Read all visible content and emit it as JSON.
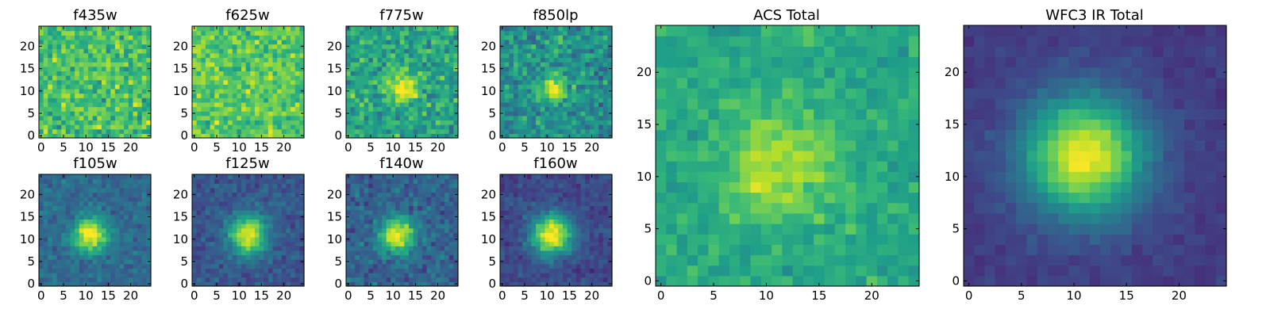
{
  "figure": {
    "colormap": "viridis",
    "colormap_stops": [
      "#440154",
      "#482878",
      "#3e4989",
      "#31688e",
      "#26828e",
      "#1f9e89",
      "#35b779",
      "#6ece58",
      "#b5de2b",
      "#fde725"
    ]
  },
  "chart_data": [
    {
      "type": "heatmap",
      "title": "f435w",
      "grid_size": 25,
      "xlim": [
        -0.5,
        24.5
      ],
      "ylim": [
        -0.5,
        24.5
      ],
      "xticks": [
        0,
        5,
        10,
        15,
        20
      ],
      "yticks": [
        0,
        5,
        10,
        15,
        20
      ],
      "source_center": [
        12,
        11
      ],
      "source_peak": 0.0,
      "source_sigma": 2.5,
      "background": 0.7,
      "noise": 0.3
    },
    {
      "type": "heatmap",
      "title": "f625w",
      "grid_size": 25,
      "xlim": [
        -0.5,
        24.5
      ],
      "ylim": [
        -0.5,
        24.5
      ],
      "xticks": [
        0,
        5,
        10,
        15,
        20
      ],
      "yticks": [
        0,
        5,
        10,
        15,
        20
      ],
      "source_center": [
        12,
        11
      ],
      "source_peak": 0.0,
      "source_sigma": 2.5,
      "background": 0.74,
      "noise": 0.26
    },
    {
      "type": "heatmap",
      "title": "f775w",
      "grid_size": 25,
      "xlim": [
        -0.5,
        24.5
      ],
      "ylim": [
        -0.5,
        24.5
      ],
      "xticks": [
        0,
        5,
        10,
        15,
        20
      ],
      "yticks": [
        0,
        5,
        10,
        15,
        20
      ],
      "source_center": [
        12,
        11
      ],
      "source_peak": 0.35,
      "source_sigma": 2.6,
      "background": 0.58,
      "noise": 0.3
    },
    {
      "type": "heatmap",
      "title": "f850lp",
      "grid_size": 25,
      "xlim": [
        -0.5,
        24.5
      ],
      "ylim": [
        -0.5,
        24.5
      ],
      "xticks": [
        0,
        5,
        10,
        15,
        20
      ],
      "yticks": [
        0,
        5,
        10,
        15,
        20
      ],
      "source_center": [
        11,
        11
      ],
      "source_peak": 0.45,
      "source_sigma": 2.2,
      "background": 0.5,
      "noise": 0.3
    },
    {
      "type": "heatmap",
      "title": "f105w",
      "grid_size": 25,
      "xlim": [
        -0.5,
        24.5
      ],
      "ylim": [
        -0.5,
        24.5
      ],
      "xticks": [
        0,
        5,
        10,
        15,
        20
      ],
      "yticks": [
        0,
        5,
        10,
        15,
        20
      ],
      "source_center": [
        11,
        11
      ],
      "source_peak": 0.7,
      "source_sigma": 2.6,
      "background": 0.35,
      "noise": 0.16
    },
    {
      "type": "heatmap",
      "title": "f125w",
      "grid_size": 25,
      "xlim": [
        -0.5,
        24.5
      ],
      "ylim": [
        -0.5,
        24.5
      ],
      "xticks": [
        0,
        5,
        10,
        15,
        20
      ],
      "yticks": [
        0,
        5,
        10,
        15,
        20
      ],
      "source_center": [
        12,
        11
      ],
      "source_peak": 0.7,
      "source_sigma": 3.0,
      "background": 0.27,
      "noise": 0.15
    },
    {
      "type": "heatmap",
      "title": "f140w",
      "grid_size": 25,
      "xlim": [
        -0.5,
        24.5
      ],
      "ylim": [
        -0.5,
        24.5
      ],
      "xticks": [
        0,
        5,
        10,
        15,
        20
      ],
      "yticks": [
        0,
        5,
        10,
        15,
        20
      ],
      "source_center": [
        11,
        11
      ],
      "source_peak": 0.7,
      "source_sigma": 2.6,
      "background": 0.32,
      "noise": 0.2
    },
    {
      "type": "heatmap",
      "title": "f160w",
      "grid_size": 25,
      "xlim": [
        -0.5,
        24.5
      ],
      "ylim": [
        -0.5,
        24.5
      ],
      "xticks": [
        0,
        5,
        10,
        15,
        20
      ],
      "yticks": [
        0,
        5,
        10,
        15,
        20
      ],
      "source_center": [
        11,
        11
      ],
      "source_peak": 0.8,
      "source_sigma": 3.2,
      "background": 0.22,
      "noise": 0.13
    },
    {
      "type": "heatmap",
      "title": "ACS Total",
      "grid_size": 25,
      "xlim": [
        -0.5,
        24.5
      ],
      "ylim": [
        -0.5,
        24.5
      ],
      "xticks": [
        0,
        5,
        10,
        15,
        20
      ],
      "yticks": [
        0,
        5,
        10,
        15,
        20
      ],
      "source_center": [
        11,
        11
      ],
      "source_peak": 0.3,
      "source_sigma": 3.5,
      "background": 0.6,
      "noise": 0.16
    },
    {
      "type": "heatmap",
      "title": "WFC3 IR Total",
      "grid_size": 25,
      "xlim": [
        -0.5,
        24.5
      ],
      "ylim": [
        -0.5,
        24.5
      ],
      "xticks": [
        0,
        5,
        10,
        15,
        20
      ],
      "yticks": [
        0,
        5,
        10,
        15,
        20
      ],
      "source_center": [
        11,
        12
      ],
      "source_peak": 0.8,
      "source_sigma": 4.0,
      "background": 0.18,
      "noise": 0.07
    }
  ]
}
